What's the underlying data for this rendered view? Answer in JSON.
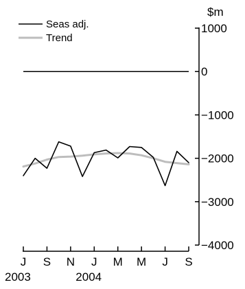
{
  "chart_data": {
    "type": "line",
    "unit_label": "$m",
    "ylim": [
      -4000,
      1000
    ],
    "yticks": [
      {
        "value": 1000,
        "label": "1000"
      },
      {
        "value": 0,
        "label": "0"
      },
      {
        "value": -1000,
        "label": "−1000"
      },
      {
        "value": -2000,
        "label": "−2000"
      },
      {
        "value": -3000,
        "label": "−3000"
      },
      {
        "value": -4000,
        "label": "−4000"
      }
    ],
    "x": [
      "2003-07",
      "2003-08",
      "2003-09",
      "2003-10",
      "2003-11",
      "2003-12",
      "2004-01",
      "2004-02",
      "2004-03",
      "2004-04",
      "2004-05",
      "2004-06",
      "2004-07",
      "2004-08",
      "2004-09"
    ],
    "xticks": [
      {
        "index": 0,
        "label": "J"
      },
      {
        "index": 2,
        "label": "S"
      },
      {
        "index": 4,
        "label": "N"
      },
      {
        "index": 6,
        "label": "J"
      },
      {
        "index": 8,
        "label": "M"
      },
      {
        "index": 10,
        "label": "M"
      },
      {
        "index": 12,
        "label": "J"
      },
      {
        "index": 14,
        "label": "S"
      }
    ],
    "year_labels": [
      {
        "index": 0,
        "label": "2003"
      },
      {
        "index": 6,
        "label": "2004"
      }
    ],
    "zero_line": 0,
    "series": [
      {
        "name": "Seas adj.",
        "color": "#000000",
        "values": [
          -2400,
          -2000,
          -2230,
          -1620,
          -1720,
          -2420,
          -1870,
          -1810,
          -1990,
          -1730,
          -1750,
          -1980,
          -2630,
          -1840,
          -2100
        ]
      },
      {
        "name": "Trend",
        "color": "#bdbdbd",
        "values": [
          -2190,
          -2120,
          -2030,
          -1970,
          -1960,
          -1940,
          -1910,
          -1890,
          -1880,
          -1890,
          -1930,
          -2000,
          -2080,
          -2110,
          -2140
        ]
      }
    ]
  }
}
